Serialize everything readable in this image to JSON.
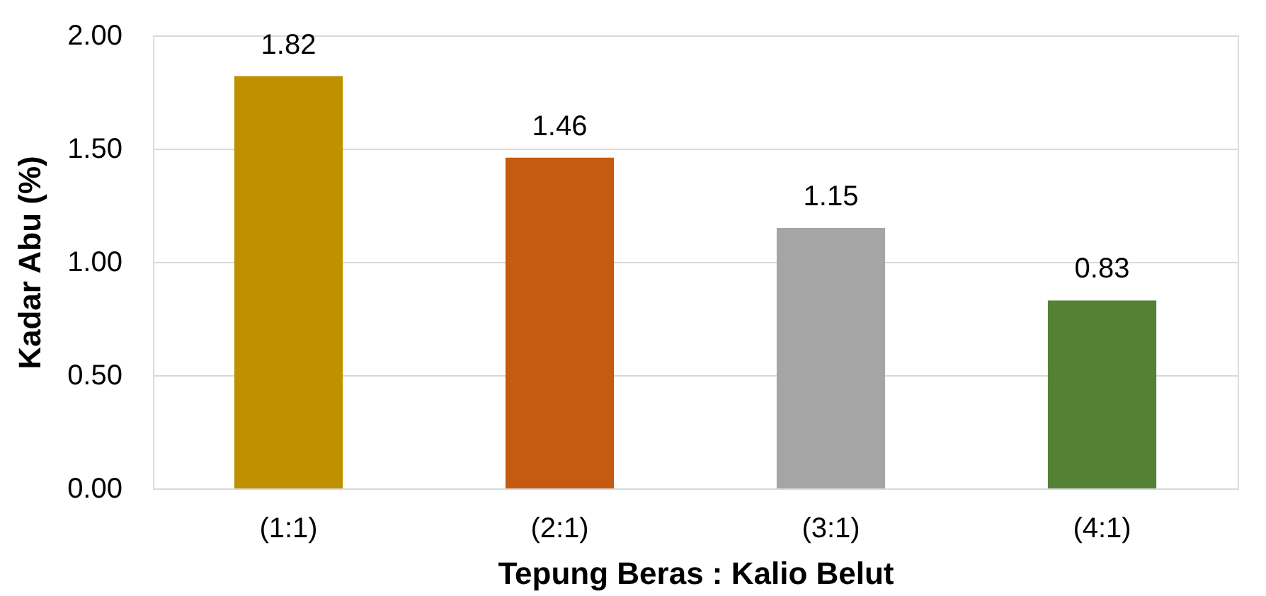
{
  "chart_data": {
    "type": "bar",
    "xlabel": "Tepung Beras : Kalio Belut",
    "ylabel": "Kadar Abu (%)",
    "categories": [
      "(1:1)",
      "(2:1)",
      "(3:1)",
      "(4:1)"
    ],
    "values": [
      1.82,
      1.46,
      1.15,
      0.83
    ],
    "colors": [
      "#bf9000",
      "#c55a11",
      "#a5a5a5",
      "#548235"
    ],
    "ylim": [
      0,
      2
    ],
    "yticks": [
      {
        "value": 0,
        "label": "0.00"
      },
      {
        "value": 0.5,
        "label": "0.50"
      },
      {
        "value": 1,
        "label": "1.00"
      },
      {
        "value": 1.5,
        "label": "1.50"
      },
      {
        "value": 2,
        "label": "2.00"
      }
    ],
    "grid": "y",
    "data_labels": true
  }
}
